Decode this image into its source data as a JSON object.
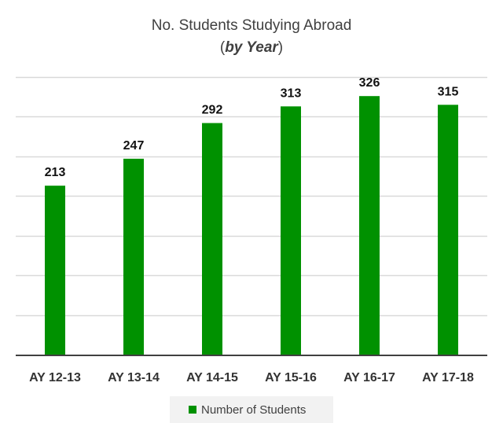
{
  "chart_data": {
    "type": "bar",
    "title": "No. Students Studying Abroad",
    "subtitle_prefix": "(",
    "subtitle_emphasis": "by Year",
    "subtitle_suffix": ")",
    "categories": [
      "AY 12-13",
      "AY 13-14",
      "AY 14-15",
      "AY 15-16",
      "AY 16-17",
      "AY 17-18"
    ],
    "series": [
      {
        "name": "Number of Students",
        "values": [
          213,
          247,
          292,
          313,
          326,
          315
        ],
        "color": "#009100"
      }
    ],
    "ylim": [
      0,
      350
    ],
    "ytick_step": 50,
    "y_tick_labels_shown": false,
    "grid": true,
    "legend": "bottom",
    "gridline_color": "#d9d9d9",
    "axis_color": "#404040"
  }
}
